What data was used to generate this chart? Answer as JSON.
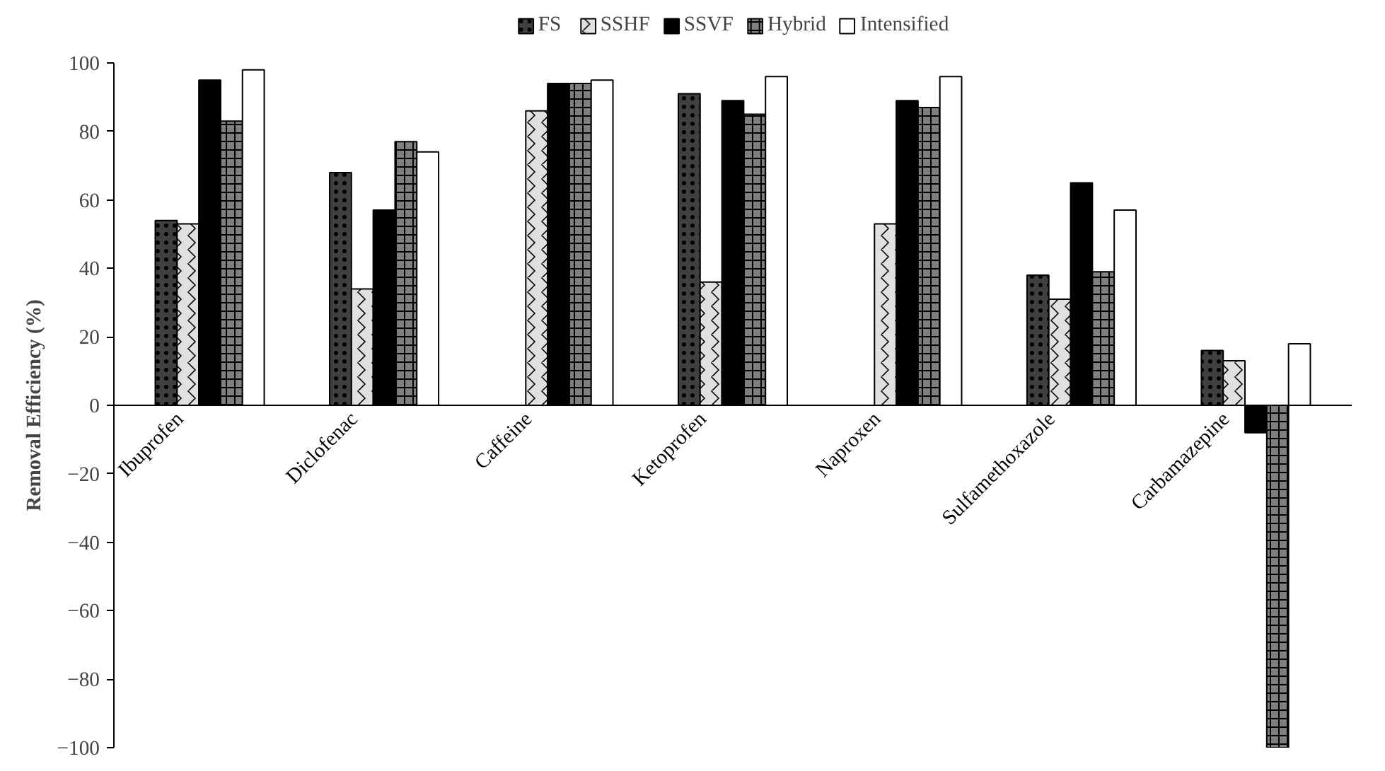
{
  "chart_data": {
    "type": "bar",
    "ylabel": "Removal Efficiency (%)",
    "categories": [
      "Ibuprofen",
      "Diclofenac",
      "Caffeine",
      "Ketoprofen",
      "Naproxen",
      "Sulfamethoxazole",
      "Carbamazepine"
    ],
    "series": [
      {
        "name": "FS",
        "color": "#404040",
        "values": [
          54,
          68,
          null,
          91,
          null,
          38,
          16
        ]
      },
      {
        "name": "SSHF",
        "color": "#e0e0e0",
        "values": [
          53,
          34,
          86,
          36,
          53,
          31,
          13
        ]
      },
      {
        "name": "SSVF",
        "color": "#000000",
        "values": [
          95,
          57,
          94,
          89,
          89,
          65,
          -8
        ]
      },
      {
        "name": "Hybrid",
        "color": "#808080",
        "values": [
          83,
          77,
          94,
          85,
          87,
          39,
          -100
        ]
      },
      {
        "name": "Intensified",
        "color": "#ffffff",
        "values": [
          98,
          74,
          95,
          96,
          96,
          57,
          18
        ]
      }
    ],
    "ylim": [
      -100,
      100
    ],
    "yticks": [
      -100,
      -80,
      -60,
      -40,
      -20,
      0,
      20,
      40,
      60,
      80,
      100
    ],
    "grid": false,
    "legend": "top"
  }
}
